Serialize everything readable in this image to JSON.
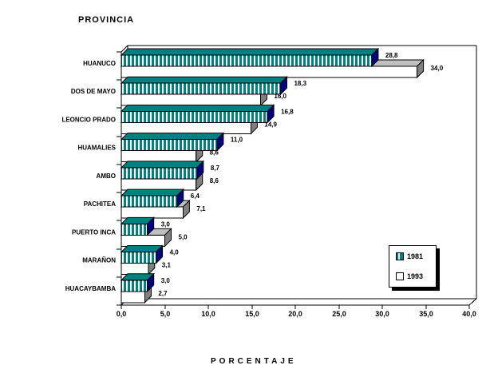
{
  "title": "PROVINCIA",
  "xlabel": "PORCENTAJE",
  "legend": {
    "items": [
      {
        "label": "1981"
      },
      {
        "label": "1993"
      }
    ]
  },
  "colors": {
    "background": "#FFFFFF",
    "text": "#000000",
    "axis": "#000000",
    "bar_1981": "#008080",
    "stripe": "#FFFFFF",
    "bar_1981_side": "#000080",
    "bar_1993": "#FFFFFF",
    "bar_1993_top": "#C0C0C0",
    "bar_1993_side": "#808080"
  },
  "chart_data": {
    "type": "bar",
    "orientation": "horizontal",
    "style": "3d",
    "title": "PROVINCIA",
    "xlabel": "PORCENTAJE",
    "categories": [
      "HUANUCO",
      "DOS DE MAYO",
      "LEONCIO PRADO",
      "HUAMALIES",
      "AMBO",
      "PACHITEA",
      "PUERTO INCA",
      "MARAÑON",
      "HUACAYBAMBA"
    ],
    "series": [
      {
        "name": "1981",
        "values": [
          28.8,
          18.3,
          16.8,
          11.0,
          8.7,
          6.4,
          3.0,
          4.0,
          3.0
        ],
        "value_labels": [
          "28,8",
          "18,3",
          "16,8",
          "11,0",
          "8,7",
          "6,4",
          "3,0",
          "4,0",
          "3,0"
        ]
      },
      {
        "name": "1993",
        "values": [
          34.0,
          16.0,
          14.9,
          8.6,
          8.6,
          7.1,
          5.0,
          3.1,
          2.7
        ],
        "value_labels": [
          "34,0",
          "16,0",
          "14,9",
          "8,6",
          "8,6",
          "7,1",
          "5,0",
          "3,1",
          "2,7"
        ]
      }
    ],
    "xlim": [
      0,
      40
    ],
    "x_tick_step": 5,
    "x_tick_labels": [
      "0,0",
      "5,0",
      "10,0",
      "15,0",
      "20,0",
      "25,0",
      "30,0",
      "35,0",
      "40,0"
    ],
    "grid": false,
    "legend_position": "inside-right",
    "value_labels_shown": true
  }
}
